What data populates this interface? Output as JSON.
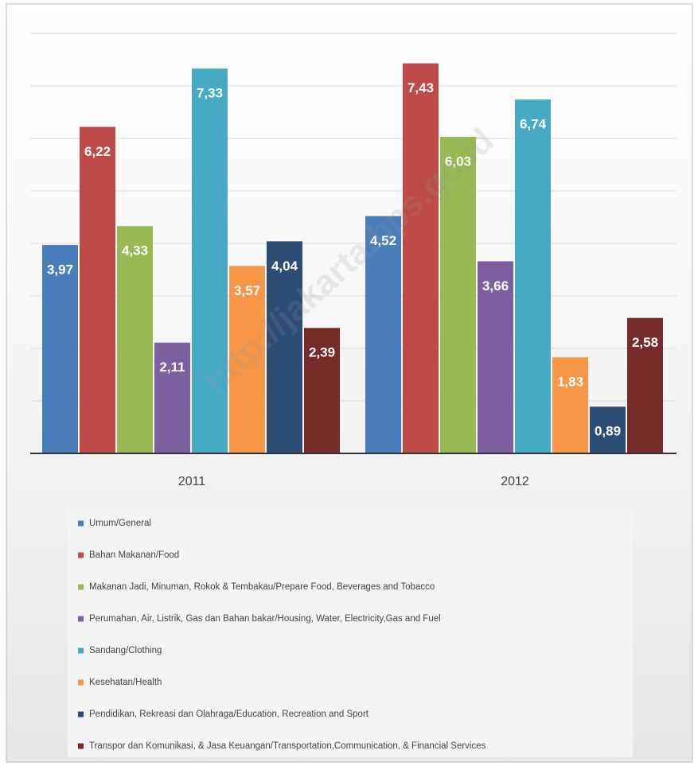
{
  "chart_data": {
    "type": "bar",
    "categories": [
      "2011",
      "2012"
    ],
    "series": [
      {
        "name": "Umum/General",
        "color": "#4a7ebb",
        "values": [
          3.97,
          4.52
        ],
        "value_labels": [
          "3,97",
          "4,52"
        ]
      },
      {
        "name": "Bahan Makanan/Food",
        "color": "#be4b48",
        "values": [
          6.22,
          7.43
        ],
        "value_labels": [
          "6,22",
          "7,43"
        ]
      },
      {
        "name": "Makanan Jadi, Minuman, Rokok & Tembakau/Prepare Food, Beverages and Tobacco",
        "color": "#98b954",
        "values": [
          4.33,
          6.03
        ],
        "value_labels": [
          "4,33",
          "6,03"
        ]
      },
      {
        "name": "Perumahan, Air, Listrik, Gas dan Bahan bakar/Housing, Water, Electricity,Gas and Fuel",
        "color": "#7d60a0",
        "values": [
          2.11,
          3.66
        ],
        "value_labels": [
          "2,11",
          "3,66"
        ]
      },
      {
        "name": "Sandang/Clothing",
        "color": "#46aac5",
        "values": [
          7.33,
          6.74
        ],
        "value_labels": [
          "7,33",
          "6,74"
        ]
      },
      {
        "name": "Kesehatan/Health",
        "color": "#f79646",
        "values": [
          3.57,
          1.83
        ],
        "value_labels": [
          "3,57",
          "1,83"
        ]
      },
      {
        "name": "Pendidikan, Rekreasi dan Olahraga/Education, Recreation and Sport",
        "color": "#2c4d75",
        "values": [
          4.04,
          0.89
        ],
        "value_labels": [
          "4,04",
          "0,89"
        ]
      },
      {
        "name": "Transpor dan Komunikasi, & Jasa Keuangan/Transportation,Communication, & Financial Services",
        "color": "#772c2a",
        "values": [
          2.39,
          2.58
        ],
        "value_labels": [
          "2,39",
          "2,58"
        ]
      }
    ],
    "ylim": [
      0,
      8.5
    ],
    "yticks": [
      0,
      1,
      2,
      3,
      4,
      5,
      6,
      7,
      8
    ],
    "grid": true,
    "watermark": "http://jakarta.bps.go.id"
  }
}
